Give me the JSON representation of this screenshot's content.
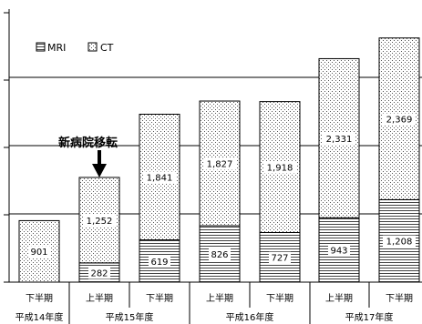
{
  "chart_data": {
    "type": "bar",
    "stacked": true,
    "categories": [
      "下半期",
      "上半期",
      "下半期",
      "上半期",
      "下半期",
      "上半期",
      "下半期"
    ],
    "year_groups": [
      {
        "label": "平成14年度",
        "count": 1
      },
      {
        "label": "平成15年度",
        "count": 2
      },
      {
        "label": "平成16年度",
        "count": 2
      },
      {
        "label": "平成17年度",
        "count": 2
      }
    ],
    "series": [
      {
        "name": "MRI",
        "values": [
          0,
          282,
          619,
          826,
          727,
          943,
          1208
        ]
      },
      {
        "name": "CT",
        "values": [
          901,
          1252,
          1841,
          1827,
          1918,
          2331,
          2369
        ]
      }
    ],
    "data_labels": {
      "MRI": [
        "",
        "282",
        "619",
        "826",
        "727",
        "943",
        "1,208"
      ],
      "CT": [
        "901",
        "1,252",
        "1,841",
        "1,827",
        "1,918",
        "2,331",
        "2,369"
      ]
    },
    "ylim": [
      0,
      4000
    ],
    "y_gridlines": [
      1000,
      2000,
      3000
    ],
    "grid": true,
    "legend": "top-left",
    "annotation": {
      "text": "新病院移転",
      "category_index": 1
    }
  }
}
